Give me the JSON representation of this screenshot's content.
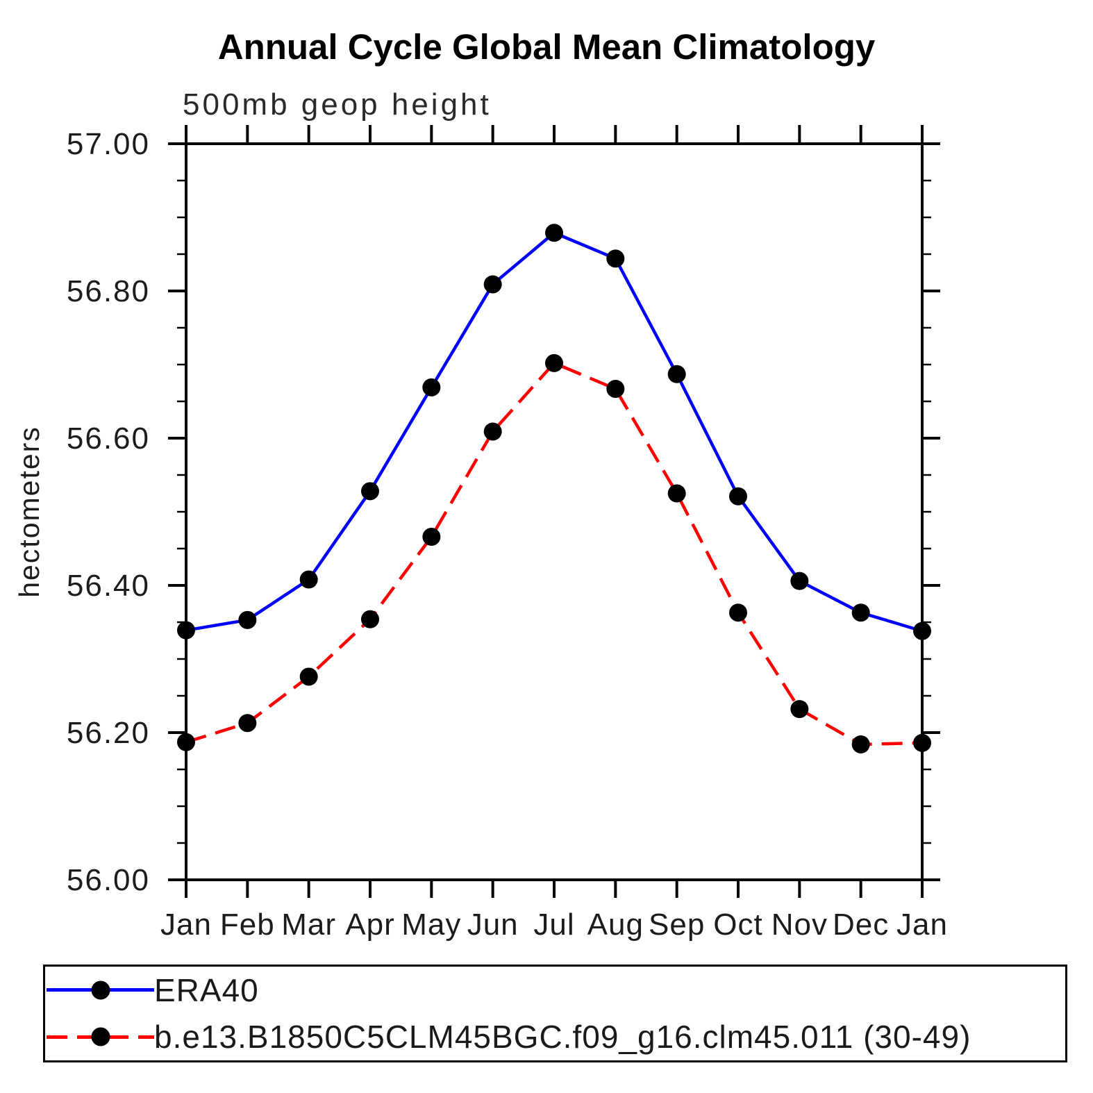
{
  "chart_data": {
    "type": "line",
    "title": "Annual Cycle Global Mean Climatology",
    "subtitle": "500mb geop height",
    "ylabel": "hectometers",
    "xlabel": "",
    "x_categories": [
      "Jan",
      "Feb",
      "Mar",
      "Apr",
      "May",
      "Jun",
      "Jul",
      "Aug",
      "Sep",
      "Oct",
      "Nov",
      "Dec",
      "Jan"
    ],
    "ylim": [
      56.0,
      57.0
    ],
    "ytick_major": [
      56.0,
      56.2,
      56.4,
      56.6,
      56.8,
      57.0
    ],
    "ytick_labels": [
      "56.00",
      "56.20",
      "56.40",
      "56.60",
      "56.80",
      "57.00"
    ],
    "ytick_minor_step": 0.05,
    "grid": "off",
    "legend_position": "bottom-left-box",
    "colors": {
      "era40_line": "#0000ff",
      "model_line": "#ff0000",
      "marker": "#000000",
      "axis": "#000000"
    },
    "series": [
      {
        "id": "era40",
        "name": "ERA40",
        "color": "#0000ff",
        "style": "solid",
        "marker": "black-dot",
        "values": [
          56.339,
          56.353,
          56.408,
          56.528,
          56.669,
          56.809,
          56.879,
          56.844,
          56.687,
          56.521,
          56.406,
          56.363,
          56.338
        ]
      },
      {
        "id": "model",
        "name": "b.e13.B1850C5CLM45BGC.f09_g16.clm45.011 (30-49)",
        "color": "#ff0000",
        "style": "dashed",
        "marker": "black-dot",
        "values": [
          56.187,
          56.213,
          56.276,
          56.354,
          56.466,
          56.609,
          56.702,
          56.667,
          56.525,
          56.363,
          56.232,
          56.184,
          56.186
        ]
      }
    ]
  }
}
